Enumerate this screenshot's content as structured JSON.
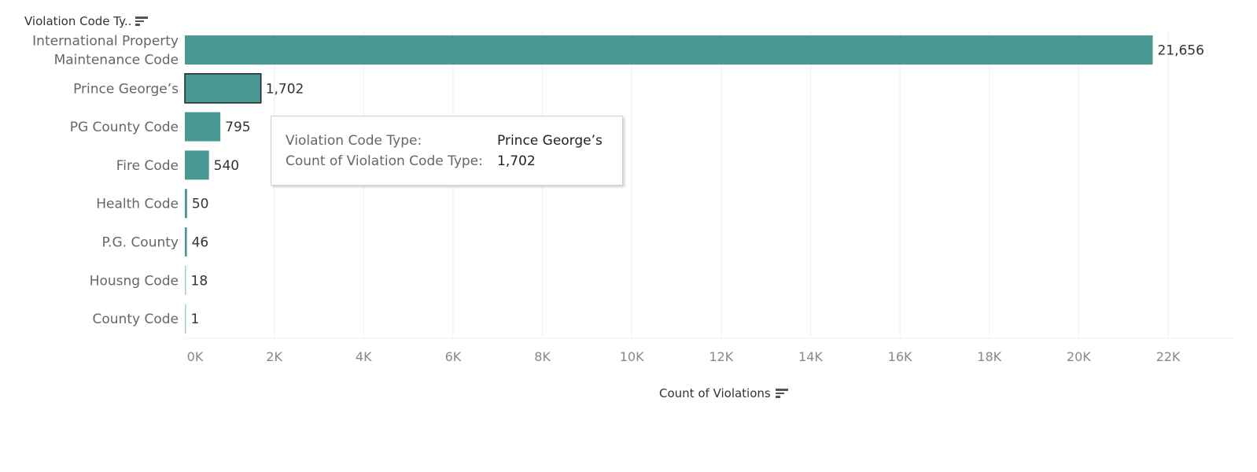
{
  "header": {
    "title": "Violation Code Ty.."
  },
  "chart_data": {
    "type": "bar",
    "orientation": "horizontal",
    "categories": [
      "International Property Maintenance Code",
      "Prince George’s",
      "PG County Code",
      "Fire Code",
      "Health Code",
      "P.G. County",
      "Housng Code",
      "County Code"
    ],
    "category_lines": [
      [
        "International Property",
        "Maintenance Code"
      ],
      [
        "Prince George’s"
      ],
      [
        "PG County Code"
      ],
      [
        "Fire Code"
      ],
      [
        "Health Code"
      ],
      [
        "P.G. County"
      ],
      [
        "Housng Code"
      ],
      [
        "County Code"
      ]
    ],
    "values": [
      21656,
      1702,
      795,
      540,
      50,
      46,
      18,
      1
    ],
    "value_labels": [
      "21,656",
      "1,702",
      "795",
      "540",
      "50",
      "46",
      "18",
      "1"
    ],
    "xlabel": "Count of Violations",
    "ylabel": "Violation Code Ty..",
    "xlim": [
      0,
      23000
    ],
    "xticks": [
      0,
      2000,
      4000,
      6000,
      8000,
      10000,
      12000,
      14000,
      16000,
      18000,
      20000,
      22000
    ],
    "xtick_labels": [
      "0K",
      "2K",
      "4K",
      "6K",
      "8K",
      "10K",
      "12K",
      "14K",
      "16K",
      "18K",
      "20K",
      "22K"
    ],
    "grid": true,
    "highlighted_category": "Prince George’s",
    "colors": {
      "bar": "#4a9893",
      "bar_light": "#9fd0cc",
      "grid": "#eeeeee",
      "highlight_border": "#222222"
    }
  },
  "tooltip": {
    "rows": [
      {
        "key": "Violation Code Type:",
        "value": "Prince George’s"
      },
      {
        "key": "Count of Violation Code Type:",
        "value": "1,702"
      }
    ]
  }
}
